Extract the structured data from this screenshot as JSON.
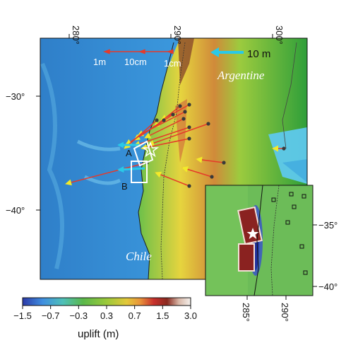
{
  "main_map": {
    "lon_ticks": [
      "280°",
      "290°",
      "300°"
    ],
    "lat_ticks": [
      "−30°",
      "−40°"
    ],
    "place_labels": [
      "Argentine",
      "Chile"
    ],
    "segment_labels": [
      "A",
      "B"
    ],
    "scale_arrows": [
      "1m",
      "10cm",
      "1cm"
    ],
    "reference_arrow": "10 m"
  },
  "inset": {
    "lat_ticks": [
      "−35°",
      "−40°"
    ],
    "lon_ticks": [
      "285°",
      "290°"
    ]
  },
  "colorbar": {
    "ticks": [
      "−1.5",
      "−0.7",
      "−0.3",
      "0.3",
      "0.7",
      "1.5",
      "3.0"
    ],
    "label": "uplift (m)",
    "colors": [
      "#2b3aa8",
      "#3f8fe0",
      "#4fc0b8",
      "#5ab84a",
      "#9bc93a",
      "#e3c83a",
      "#e8933a",
      "#c8302c",
      "#8a2a20",
      "#d9b8a8",
      "#f4f0ec"
    ]
  },
  "colors": {
    "displacement_arrow": "#e53a2a",
    "arrow_tip": "#f2ea2a",
    "reference_arrow": "#29c9e8",
    "station_dot": "#3a3a3a"
  }
}
